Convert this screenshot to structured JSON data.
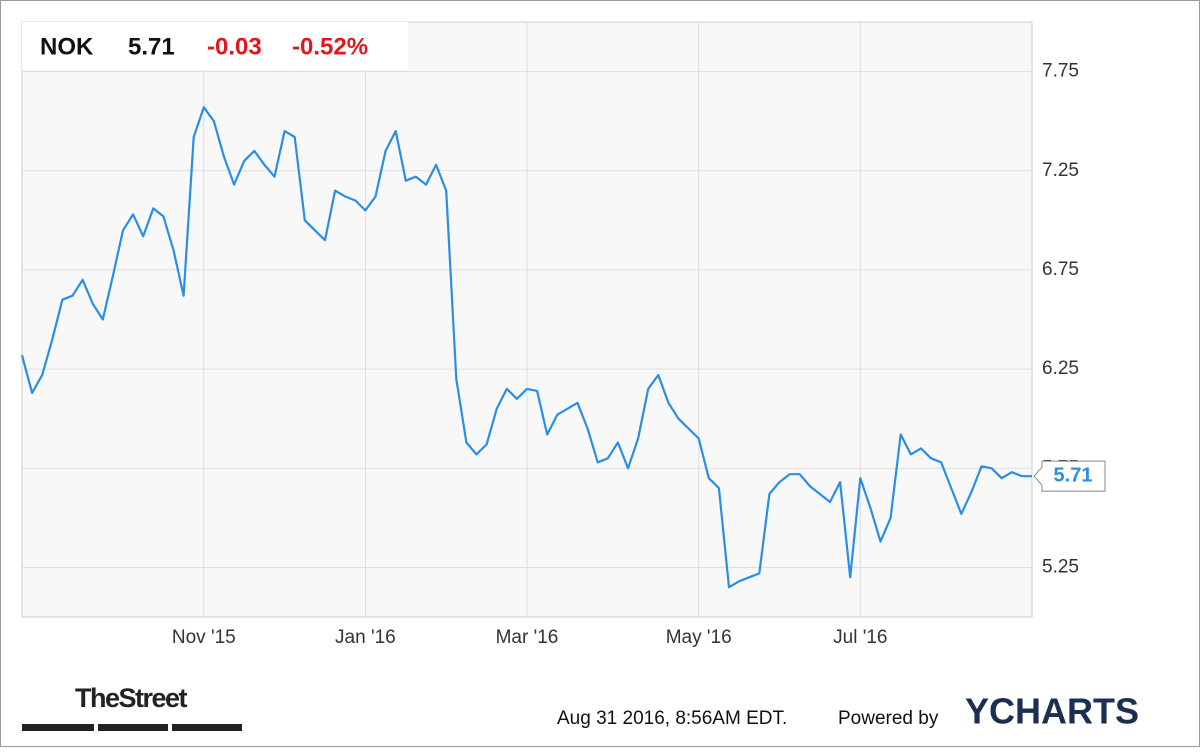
{
  "chart_data": {
    "type": "line",
    "header": {
      "symbol": "NOK",
      "price": "5.71",
      "change": "-0.03",
      "change_pct": "-0.52%"
    },
    "categories": [
      null,
      null,
      null,
      null,
      null,
      null,
      null,
      null,
      null,
      null,
      null,
      null,
      null,
      null,
      null,
      null,
      null,
      null,
      "Nov '15",
      null,
      null,
      null,
      null,
      null,
      null,
      null,
      null,
      null,
      null,
      null,
      null,
      null,
      null,
      null,
      "Jan '16",
      null,
      null,
      null,
      null,
      null,
      null,
      null,
      null,
      null,
      null,
      null,
      null,
      null,
      null,
      null,
      "Mar '16",
      null,
      null,
      null,
      null,
      null,
      null,
      null,
      null,
      null,
      null,
      null,
      null,
      null,
      null,
      null,
      null,
      "May '16",
      null,
      null,
      null,
      null,
      null,
      null,
      null,
      null,
      null,
      null,
      null,
      null,
      null,
      null,
      null,
      "Jul '16",
      null,
      null,
      null,
      null,
      null,
      null,
      null,
      null,
      null,
      null,
      null,
      null,
      null,
      null,
      null,
      null,
      null
    ],
    "series": [
      {
        "name": "NOK",
        "color": "#2a8ee6",
        "values": [
          6.32,
          6.13,
          6.22,
          6.4,
          6.6,
          6.62,
          6.7,
          6.58,
          6.5,
          6.72,
          6.95,
          7.03,
          6.92,
          7.06,
          7.02,
          6.85,
          6.62,
          7.42,
          7.57,
          7.5,
          7.32,
          7.18,
          7.3,
          7.35,
          7.28,
          7.22,
          7.45,
          7.42,
          7.0,
          6.95,
          6.9,
          7.15,
          7.12,
          7.1,
          7.05,
          7.12,
          7.35,
          7.45,
          7.2,
          7.22,
          7.18,
          7.28,
          7.15,
          6.2,
          5.88,
          5.82,
          5.87,
          6.05,
          6.15,
          6.1,
          6.15,
          6.14,
          5.92,
          6.02,
          6.05,
          6.08,
          5.95,
          5.78,
          5.8,
          5.88,
          5.75,
          5.9,
          6.15,
          6.22,
          6.08,
          6.0,
          5.95,
          5.9,
          5.7,
          5.65,
          5.15,
          5.18,
          5.2,
          5.22,
          5.62,
          5.68,
          5.72,
          5.72,
          5.66,
          5.62,
          5.58,
          5.68,
          5.2,
          5.7,
          5.55,
          5.38,
          5.5,
          5.92,
          5.82,
          5.85,
          5.8,
          5.78,
          5.65,
          5.52,
          5.63,
          5.76,
          5.75,
          5.7,
          5.73,
          5.71,
          5.71
        ]
      }
    ],
    "ylim": [
      5.0,
      8.0
    ],
    "yticks": [
      5.25,
      5.75,
      6.25,
      6.75,
      7.25,
      7.75
    ],
    "grid": true,
    "footer": {
      "source_logo": "TheStreet",
      "timestamp": "Aug 31 2016, 8:56AM EDT.",
      "powered": "Powered by",
      "brand": "YCHARTS"
    }
  }
}
